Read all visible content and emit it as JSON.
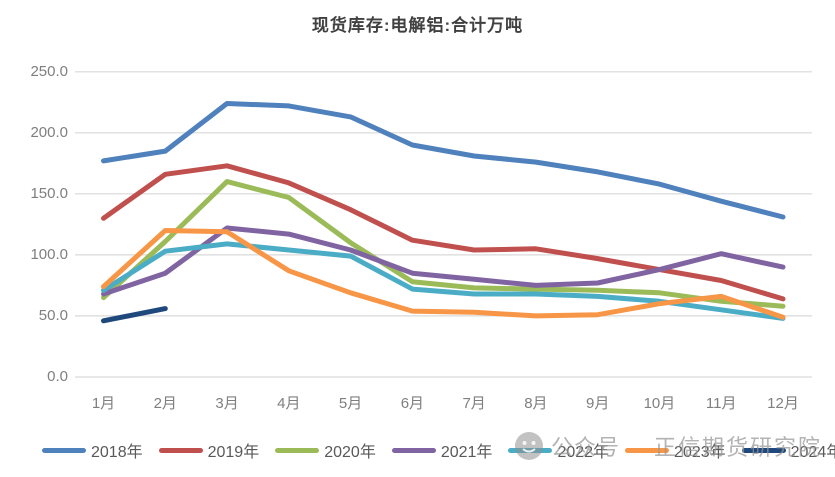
{
  "title": "现货库存:电解铝:合计万吨",
  "watermark": {
    "badge": "公众号",
    "name": "正信期货研究院"
  },
  "chart_data": {
    "type": "line",
    "title": "现货库存:电解铝:合计万吨",
    "unit": "万吨",
    "categories": [
      "1月",
      "2月",
      "3月",
      "4月",
      "5月",
      "6月",
      "7月",
      "8月",
      "9月",
      "10月",
      "11月",
      "12月"
    ],
    "series": [
      {
        "name": "2018年",
        "color": "#4F81BD",
        "values": [
          177,
          185,
          224,
          222,
          213,
          190,
          181,
          176,
          168,
          158,
          144,
          131
        ]
      },
      {
        "name": "2019年",
        "color": "#C0504D",
        "values": [
          130,
          166,
          173,
          159,
          137,
          112,
          104,
          105,
          97,
          88,
          79,
          64
        ]
      },
      {
        "name": "2020年",
        "color": "#9BBB59",
        "values": [
          65,
          111,
          160,
          147,
          110,
          78,
          73,
          72,
          71,
          69,
          62,
          58
        ]
      },
      {
        "name": "2021年",
        "color": "#8064A2",
        "values": [
          68,
          85,
          122,
          117,
          104,
          85,
          80,
          75,
          77,
          88,
          101,
          90
        ]
      },
      {
        "name": "2022年",
        "color": "#4BACC6",
        "values": [
          71,
          103,
          109,
          104,
          99,
          72,
          68,
          68,
          66,
          62,
          55,
          48
        ]
      },
      {
        "name": "2023年",
        "color": "#F79646",
        "values": [
          74,
          120,
          119,
          87,
          69,
          54,
          53,
          50,
          51,
          60,
          66,
          49
        ]
      },
      {
        "name": "2024年",
        "color": "#1F497D",
        "values": [
          46,
          56,
          null,
          null,
          null,
          null,
          null,
          null,
          null,
          null,
          null,
          null
        ]
      }
    ],
    "ylim": [
      0,
      250
    ],
    "ytick_step": 50,
    "ytick_labels": [
      "0.0",
      "50.0",
      "100.0",
      "150.0",
      "200.0",
      "250.0"
    ],
    "grid": true,
    "legend_position": "bottom"
  },
  "colors": {
    "background": "#FFFFFF",
    "gridline": "#D9D9D9",
    "axis_text": "#7F7F7F",
    "title_text": "#404040",
    "legend_text": "#595959",
    "watermark": "#969696"
  }
}
